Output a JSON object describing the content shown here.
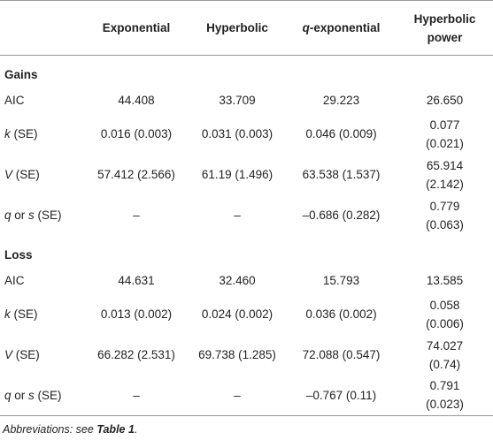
{
  "table": {
    "header": [
      [
        "Exponential"
      ],
      [
        "Hyperbolic"
      ],
      [
        "q",
        "-exponential"
      ],
      [
        "Hyperbolic power"
      ]
    ],
    "sections": [
      {
        "title": "Gains",
        "rows": [
          {
            "label": [
              "AIC"
            ],
            "cells": [
              "44.408",
              "33.709",
              "29.223",
              "26.650"
            ]
          },
          {
            "label": [
              "k",
              " (SE)"
            ],
            "cells": [
              "0.016 (0.003)",
              "0.031 (0.003)",
              "0.046 (0.009)",
              "0.077 (0.021)"
            ]
          },
          {
            "label": [
              "V",
              " (SE)"
            ],
            "cells": [
              "57.412 (2.566)",
              "61.19 (1.496)",
              "63.538 (1.537)",
              "65.914 (2.142)"
            ]
          },
          {
            "label": [
              "q",
              " or ",
              "s",
              " (SE)"
            ],
            "cells": [
              "–",
              "–",
              "–0.686 (0.282)",
              "0.779 (0.063)"
            ]
          }
        ]
      },
      {
        "title": "Loss",
        "rows": [
          {
            "label": [
              "AIC"
            ],
            "cells": [
              "44.631",
              "32.460",
              "15.793",
              "13.585"
            ]
          },
          {
            "label": [
              "k",
              " (SE)"
            ],
            "cells": [
              "0.013 (0.002)",
              "0.024 (0.002)",
              "0.036 (0.002)",
              "0.058 (0.006)"
            ]
          },
          {
            "label": [
              "V",
              " (SE)"
            ],
            "cells": [
              "66.282 (2.531)",
              "69.738 (1.285)",
              "72.088 (0.547)",
              "74.027 (0.74)"
            ]
          },
          {
            "label": [
              "q",
              " or ",
              "s",
              " (SE)"
            ],
            "cells": [
              "–",
              "–",
              "–0.767 (0.11)",
              "0.791 (0.023)"
            ]
          }
        ]
      }
    ],
    "footnote": [
      "Abbreviations: see ",
      "Table 1",
      "."
    ]
  }
}
